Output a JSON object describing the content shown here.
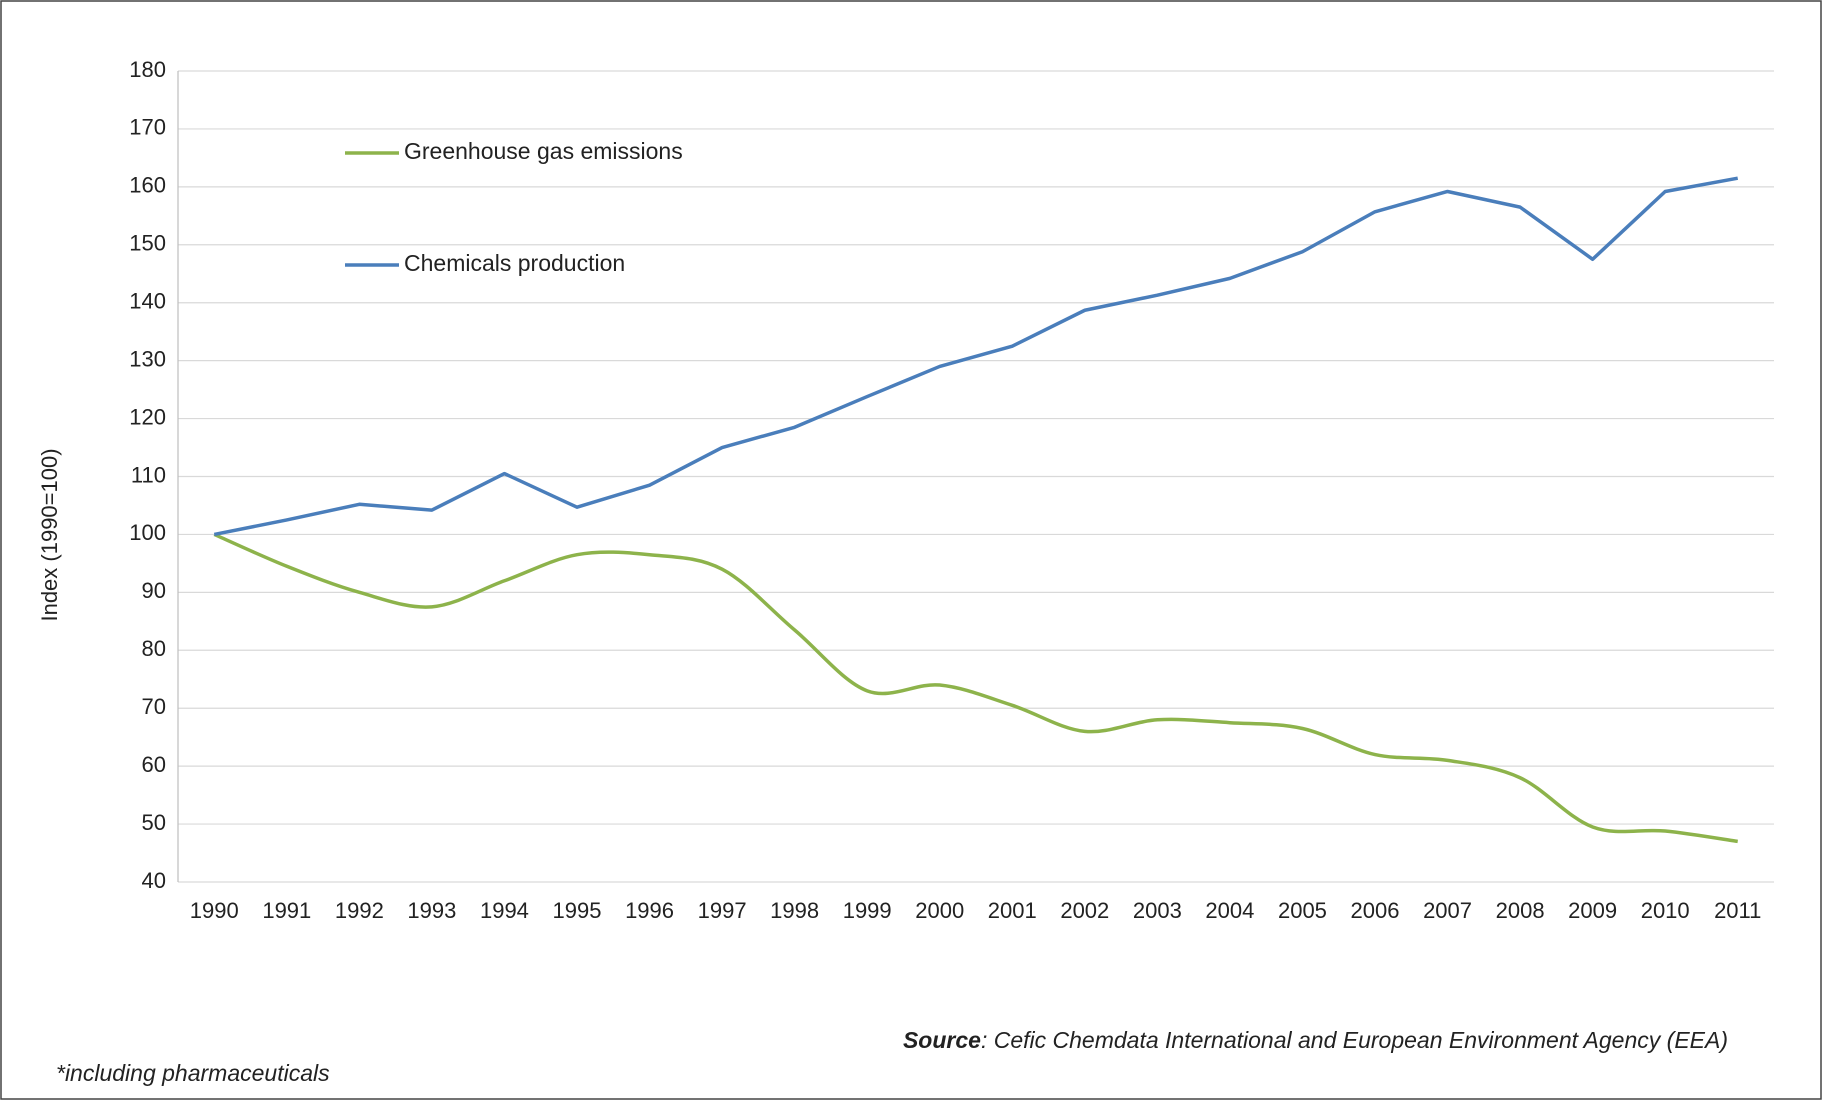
{
  "chart_data": {
    "type": "line",
    "y_label": "Index  (1990=100)",
    "categories": [
      "1990",
      "1991",
      "1992",
      "1993",
      "1994",
      "1995",
      "1996",
      "1997",
      "1998",
      "1999",
      "2000",
      "2001",
      "2002",
      "2003",
      "2004",
      "2005",
      "2006",
      "2007",
      "2008",
      "2009",
      "2010",
      "2011"
    ],
    "series": [
      {
        "name": "Greenhouse gas emissions",
        "color": "#8db34b",
        "smooth": true,
        "values": [
          100,
          94.5,
          90,
          87.5,
          92,
          96.5,
          96.5,
          94,
          83.5,
          73,
          74,
          70.5,
          66,
          68,
          67.5,
          66.5,
          62,
          61,
          58,
          49.5,
          48.8,
          47
        ]
      },
      {
        "name": "Chemicals production",
        "color": "#4a7ebb",
        "smooth": false,
        "values": [
          100,
          102.5,
          105.2,
          104.2,
          110.5,
          104.7,
          108.5,
          115,
          118.5,
          123.8,
          129,
          132.5,
          138.7,
          141.3,
          144.2,
          148.8,
          155.7,
          159.2,
          156.5,
          147.5,
          159.2,
          161.5
        ]
      }
    ],
    "ylim": [
      40,
      180
    ],
    "yticks": [
      40,
      50,
      60,
      70,
      80,
      90,
      100,
      110,
      120,
      130,
      140,
      150,
      160,
      170,
      180
    ],
    "grid": true,
    "legend": "upper left",
    "source_label": "Source",
    "source_text": ": Cefic Chemdata International and  European Environment Agency (EEA)",
    "footnote": "*including pharmaceuticals"
  }
}
